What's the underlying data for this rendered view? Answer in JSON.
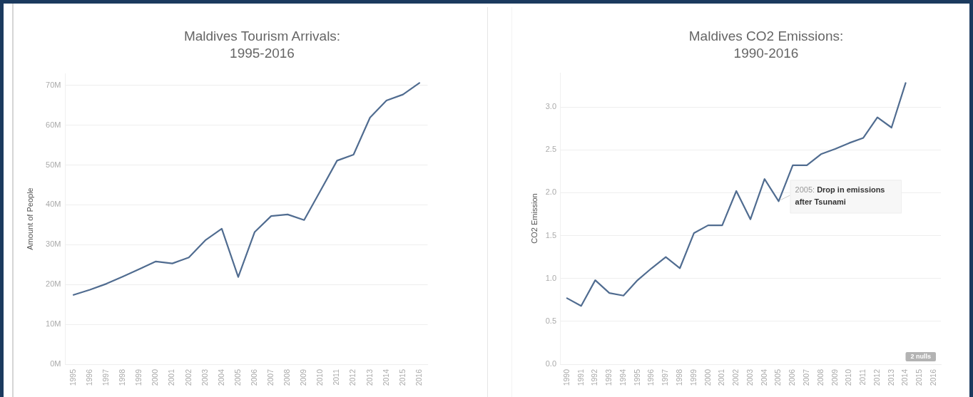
{
  "chart_data": [
    {
      "type": "line",
      "title": "Maldives Tourism Arrivals:\n1995-2016",
      "ylabel": "Amount of People",
      "categories": [
        "1995",
        "1996",
        "1997",
        "1998",
        "1999",
        "2000",
        "2001",
        "2002",
        "2003",
        "2004",
        "2005",
        "2006",
        "2007",
        "2008",
        "2009",
        "2010",
        "2011",
        "2012",
        "2013",
        "2014",
        "2015",
        "2016"
      ],
      "series": [
        {
          "color": "#506c90",
          "values": [
            17.4,
            18.7,
            20.2,
            22.0,
            23.9,
            25.8,
            25.3,
            26.8,
            31.1,
            34.0,
            21.9,
            33.2,
            37.2,
            37.6,
            36.2,
            43.6,
            51.1,
            52.6,
            61.9,
            66.2,
            67.7,
            70.6
          ]
        }
      ],
      "ylim": [
        0,
        73
      ],
      "yticks": [
        {
          "value": 0,
          "label": "0M"
        },
        {
          "value": 10,
          "label": "10M"
        },
        {
          "value": 20,
          "label": "20M"
        },
        {
          "value": 30,
          "label": "30M"
        },
        {
          "value": 40,
          "label": "40M"
        },
        {
          "value": 50,
          "label": "50M"
        },
        {
          "value": 60,
          "label": "60M"
        },
        {
          "value": 70,
          "label": "70M"
        }
      ],
      "grid": "y"
    },
    {
      "type": "line",
      "title": "Maldives CO2 Emissions:\n1990-2016",
      "ylabel": "CO2 Emission",
      "categories": [
        "1990",
        "1991",
        "1992",
        "1993",
        "1994",
        "1995",
        "1996",
        "1997",
        "1998",
        "1999",
        "2000",
        "2001",
        "2002",
        "2003",
        "2004",
        "2005",
        "2006",
        "2007",
        "2008",
        "2009",
        "2010",
        "2011",
        "2012",
        "2013",
        "2014",
        "2015",
        "2016"
      ],
      "series": [
        {
          "color": "#506c90",
          "values": [
            0.77,
            0.68,
            0.98,
            0.83,
            0.8,
            0.98,
            1.12,
            1.25,
            1.12,
            1.53,
            1.62,
            1.62,
            2.02,
            1.69,
            2.16,
            1.9,
            2.32,
            2.32,
            2.45,
            2.51,
            2.58,
            2.64,
            2.88,
            2.76,
            3.28,
            null,
            null
          ]
        }
      ],
      "ylim": [
        0,
        3.4
      ],
      "yticks": [
        {
          "value": 0,
          "label": "0.0"
        },
        0.5,
        {
          "value": 1,
          "label": "1.0"
        },
        1.5,
        {
          "value": 2,
          "label": "2.0"
        },
        2.5,
        {
          "value": 3,
          "label": "3.0"
        }
      ],
      "grid": "y",
      "annotations": [
        {
          "text": "2005: Drop in emissions after Tsunami",
          "x": "2005",
          "y": 1.9
        },
        "2 nulls"
      ]
    }
  ]
}
